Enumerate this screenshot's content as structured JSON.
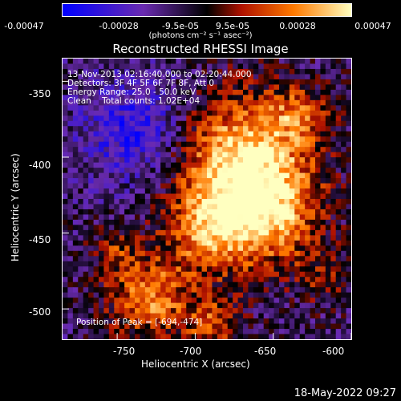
{
  "chart_data": {
    "type": "heatmap",
    "title": "Reconstructed RHESSI Image",
    "xlabel": "Heliocentric X (arcsec)",
    "ylabel": "Heliocentric Y (arcsec)",
    "xlim": [
      -785,
      -600
    ],
    "ylim": [
      -520,
      -335
    ],
    "x_ticks": [
      "-750",
      "-700",
      "-650",
      "-600"
    ],
    "y_ticks": [
      "-350",
      "-400",
      "-450",
      "-500"
    ],
    "colorbar": {
      "range": [
        -0.00047,
        0.00047
      ],
      "ticks": [
        "-0.00047",
        "-0.00028",
        "-9.5e-05",
        "9.5e-05",
        "0.00028",
        "0.00047"
      ],
      "unit_label": "(photons cm⁻² s⁻¹ asec⁻²)",
      "colors": [
        "#0000ff",
        "#6a2bb0",
        "#000000",
        "#b01200",
        "#ff7a00",
        "#ffffc0"
      ]
    },
    "annotations": [
      "13-Nov-2013 02:16:40.000 to 02:20:44.000",
      "Detectors: 3F 4F 5F 6F 7F 8F, Att 0",
      "Energy Range: 25.0 - 50.0 keV",
      "Clean    Total counts: 1.02E+04"
    ],
    "peak_label": "Position of Peak = [-694,-474]",
    "peak_position": [
      -694,
      -474
    ]
  },
  "footer_date": "18-May-2022 09:27"
}
